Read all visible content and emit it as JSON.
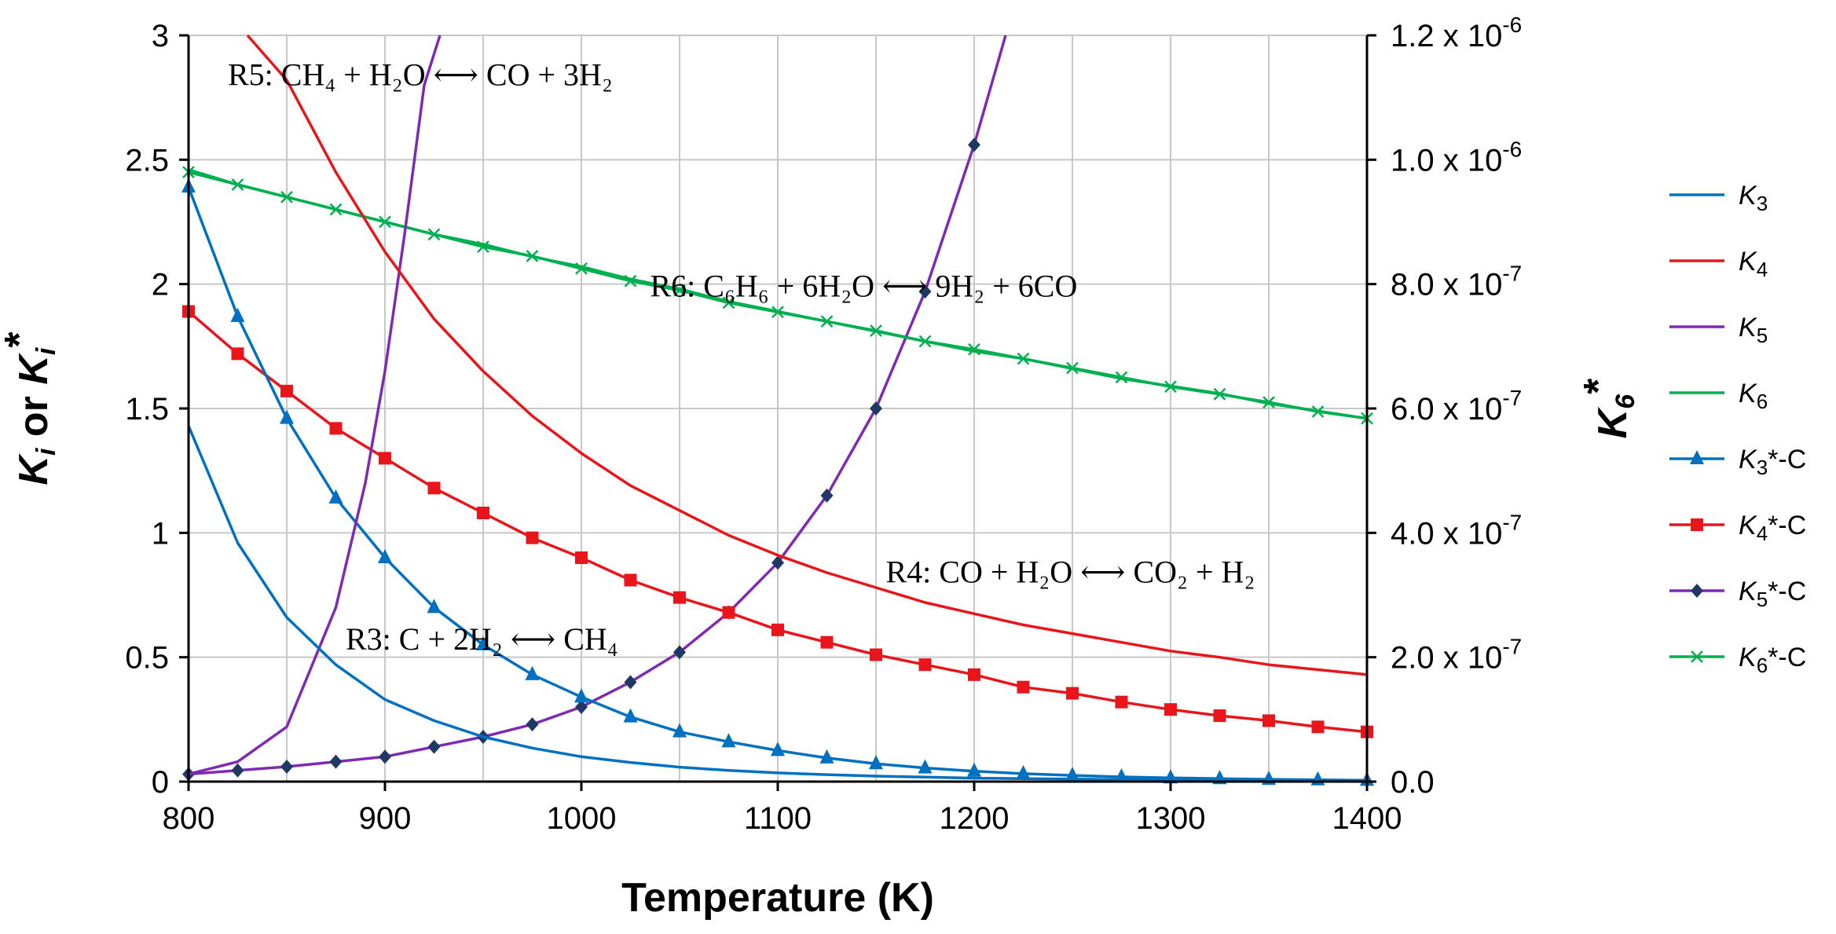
{
  "chart_data": {
    "type": "line",
    "xlabel": "Temperature (K)",
    "ylabel": "Ki or Ki*",
    "y2label": "K6*",
    "xlim": [
      800,
      1400
    ],
    "ylim": [
      0,
      3
    ],
    "y2lim": [
      0,
      1.2e-06
    ],
    "x_ticks": [
      800,
      900,
      1000,
      1100,
      1200,
      1300,
      1400
    ],
    "x_tick_labels": [
      "800",
      "900",
      "1000",
      "1100",
      "1200",
      "1300",
      "1400"
    ],
    "y_ticks": [
      0,
      0.5,
      1,
      1.5,
      2,
      2.5,
      3
    ],
    "y_tick_labels": [
      "0",
      "0.5",
      "1",
      "1.5",
      "2",
      "2.5",
      "3"
    ],
    "y2_ticks": [
      0,
      2e-07,
      4e-07,
      6e-07,
      8e-07,
      1e-06,
      1.2e-06
    ],
    "y2_tick_labels": [
      {
        "mant": "0.0",
        "exp": ""
      },
      {
        "mant": "2.0 x 10",
        "exp": "-7"
      },
      {
        "mant": "4.0 x 10",
        "exp": "-7"
      },
      {
        "mant": "6.0 x 10",
        "exp": "-7"
      },
      {
        "mant": "8.0 x 10",
        "exp": "-7"
      },
      {
        "mant": "1.0 x 10",
        "exp": "-6"
      },
      {
        "mant": "1.2 x 10",
        "exp": "-6"
      }
    ],
    "grid": true,
    "legend_position": "right",
    "series": [
      {
        "name": "K3",
        "base": "K",
        "sub": "3",
        "suffix": "",
        "color": "#0070C0",
        "marker": "none",
        "axis": "left",
        "x": [
          800,
          825,
          850,
          875,
          900,
          925,
          950,
          975,
          1000,
          1025,
          1050,
          1075,
          1100,
          1125,
          1150,
          1175,
          1200,
          1225,
          1250,
          1275,
          1300,
          1325,
          1350,
          1375,
          1400
        ],
        "values": [
          1.43,
          0.96,
          0.66,
          0.47,
          0.33,
          0.245,
          0.18,
          0.135,
          0.1,
          0.077,
          0.058,
          0.045,
          0.035,
          0.028,
          0.022,
          0.018,
          0.014,
          0.012,
          0.01,
          0.008,
          0.007,
          0.006,
          0.005,
          0.004,
          0.004
        ]
      },
      {
        "name": "K4",
        "base": "K",
        "sub": "4",
        "suffix": "",
        "color": "#E8161B",
        "marker": "none",
        "axis": "left",
        "x": [
          830,
          850,
          875,
          900,
          925,
          950,
          975,
          1000,
          1025,
          1050,
          1075,
          1100,
          1125,
          1150,
          1175,
          1200,
          1225,
          1250,
          1275,
          1300,
          1325,
          1350,
          1375,
          1400
        ],
        "values": [
          3.0,
          2.82,
          2.45,
          2.13,
          1.86,
          1.65,
          1.47,
          1.32,
          1.19,
          1.09,
          0.99,
          0.91,
          0.84,
          0.78,
          0.72,
          0.675,
          0.63,
          0.595,
          0.56,
          0.525,
          0.5,
          0.47,
          0.45,
          0.43
        ]
      },
      {
        "name": "K5",
        "base": "K",
        "sub": "5",
        "suffix": "",
        "color": "#7F2AB2",
        "marker": "none",
        "axis": "left",
        "x": [
          800,
          825,
          850,
          875,
          890,
          900,
          910,
          920,
          928
        ],
        "values": [
          0.03,
          0.08,
          0.22,
          0.7,
          1.2,
          1.65,
          2.2,
          2.8,
          3.0
        ]
      },
      {
        "name": "K6",
        "base": "K",
        "sub": "6",
        "suffix": "",
        "color": "#00B050",
        "marker": "none",
        "axis": "left",
        "x": [
          800,
          825,
          850,
          875,
          900,
          925,
          950,
          975,
          1000,
          1025,
          1050,
          1075,
          1100,
          1125,
          1150,
          1175,
          1200,
          1225,
          1250,
          1275,
          1300,
          1325,
          1350,
          1375,
          1400
        ],
        "values": [
          2.46,
          2.4,
          2.35,
          2.3,
          2.25,
          2.2,
          2.16,
          2.11,
          2.07,
          2.02,
          1.98,
          1.93,
          1.89,
          1.85,
          1.81,
          1.77,
          1.73,
          1.7,
          1.66,
          1.62,
          1.59,
          1.56,
          1.52,
          1.49,
          1.46
        ]
      },
      {
        "name": "K3*-C",
        "base": "K",
        "sub": "3",
        "suffix": "*-C",
        "color": "#0070C0",
        "marker": "triangle",
        "axis": "left",
        "x": [
          800,
          825,
          850,
          875,
          900,
          925,
          950,
          975,
          1000,
          1025,
          1050,
          1075,
          1100,
          1125,
          1150,
          1175,
          1200,
          1225,
          1250,
          1275,
          1300,
          1325,
          1350,
          1375,
          1400
        ],
        "values": [
          2.39,
          1.87,
          1.46,
          1.14,
          0.9,
          0.7,
          0.55,
          0.43,
          0.34,
          0.26,
          0.2,
          0.16,
          0.125,
          0.095,
          0.072,
          0.055,
          0.042,
          0.032,
          0.025,
          0.019,
          0.015,
          0.012,
          0.009,
          0.007,
          0.005
        ]
      },
      {
        "name": "K4*-C",
        "base": "K",
        "sub": "4",
        "suffix": "*-C",
        "color": "#E8161B",
        "marker": "square",
        "axis": "left",
        "x": [
          800,
          825,
          850,
          875,
          900,
          925,
          950,
          975,
          1000,
          1025,
          1050,
          1075,
          1100,
          1125,
          1150,
          1175,
          1200,
          1225,
          1250,
          1275,
          1300,
          1325,
          1350,
          1375,
          1400
        ],
        "values": [
          1.89,
          1.72,
          1.57,
          1.42,
          1.3,
          1.18,
          1.08,
          0.98,
          0.9,
          0.81,
          0.74,
          0.68,
          0.61,
          0.56,
          0.51,
          0.47,
          0.43,
          0.38,
          0.355,
          0.32,
          0.29,
          0.265,
          0.245,
          0.22,
          0.2
        ]
      },
      {
        "name": "K5*-C",
        "base": "K",
        "sub": "5",
        "suffix": "*-C",
        "color": "#7F2AB2",
        "marker": "diamond",
        "marker_color": "#1F3864",
        "axis": "left",
        "x": [
          800,
          825,
          850,
          875,
          900,
          925,
          950,
          975,
          1000,
          1025,
          1050,
          1075,
          1100,
          1125,
          1150,
          1175,
          1200,
          1216
        ],
        "values": [
          0.03,
          0.045,
          0.06,
          0.08,
          0.1,
          0.14,
          0.18,
          0.23,
          0.3,
          0.4,
          0.52,
          0.68,
          0.88,
          1.15,
          1.5,
          1.97,
          2.56,
          3.0
        ]
      },
      {
        "name": "K6*-C",
        "base": "K",
        "sub": "6",
        "suffix": "*-C",
        "color": "#00B050",
        "marker": "x",
        "axis": "right",
        "x": [
          800,
          825,
          850,
          875,
          900,
          925,
          950,
          975,
          1000,
          1025,
          1050,
          1075,
          1100,
          1125,
          1150,
          1175,
          1200,
          1225,
          1250,
          1275,
          1300,
          1325,
          1350,
          1375,
          1400
        ],
        "values": [
          9.8e-07,
          9.6e-07,
          9.4e-07,
          9.2e-07,
          9e-07,
          8.8e-07,
          8.6e-07,
          8.45e-07,
          8.25e-07,
          8.05e-07,
          7.9e-07,
          7.7e-07,
          7.55e-07,
          7.4e-07,
          7.25e-07,
          7.08e-07,
          6.95e-07,
          6.8e-07,
          6.65e-07,
          6.5e-07,
          6.35e-07,
          6.23e-07,
          6.1e-07,
          5.95e-07,
          5.84e-07
        ]
      }
    ],
    "annotations": [
      {
        "id": "r5",
        "text": "R5: CH₄ + H₂O ⟷ CO + 3H₂",
        "x": 820,
        "y": 2.8
      },
      {
        "id": "r6",
        "text": "R6: C₆H₆ + 6H₂O ⟷ 9H₂ + 6CO",
        "x": 1035,
        "y": 1.95
      },
      {
        "id": "r4",
        "text": "R4: CO + H₂O ⟷ CO₂ + H₂",
        "x": 1155,
        "y": 0.8
      },
      {
        "id": "r3",
        "text": "R3: C + 2H₂ ⟷ CH₄",
        "x": 880,
        "y": 0.53
      }
    ]
  }
}
